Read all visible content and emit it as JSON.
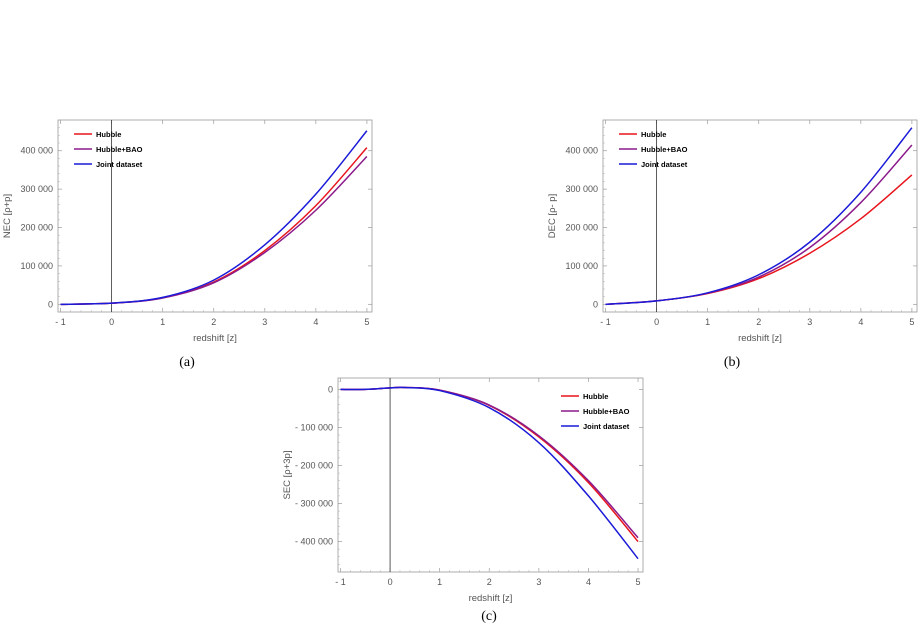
{
  "chart_data": [
    {
      "id": "a",
      "type": "line",
      "caption": "(a)",
      "xlabel": "redshift [z]",
      "ylabel": "NEC [ρ+p]",
      "xlim": [
        -1.05,
        5.1
      ],
      "ylim": [
        -20000,
        480000
      ],
      "xticks": [
        -1,
        0,
        1,
        2,
        3,
        4,
        5
      ],
      "xtick_labels": [
        "- 1",
        "0",
        "1",
        "2",
        "3",
        "4",
        "5"
      ],
      "yticks": [
        0,
        100000,
        200000,
        300000,
        400000
      ],
      "ytick_labels": [
        "0",
        "100 000",
        "200 000",
        "300 000",
        "400 000"
      ],
      "vline_x": 0,
      "legend_position": "top-left",
      "series": [
        {
          "name": "Hubble",
          "color": "#e8141c",
          "x": [
            -1,
            0,
            1,
            2,
            3,
            4,
            5
          ],
          "y": [
            0,
            3000,
            17000,
            58000,
            140000,
            257000,
            408000
          ]
        },
        {
          "name": "Hubble+BAO",
          "color": "#8b1a8b",
          "x": [
            -1,
            0,
            1,
            2,
            3,
            4,
            5
          ],
          "y": [
            0,
            3000,
            16500,
            56000,
            135000,
            245000,
            385000
          ]
        },
        {
          "name": "Joint dataset",
          "color": "#1a1ad8",
          "x": [
            -1,
            0,
            1,
            2,
            3,
            4,
            5
          ],
          "y": [
            0,
            3000,
            18000,
            63000,
            155000,
            287000,
            452000
          ]
        }
      ]
    },
    {
      "id": "b",
      "type": "line",
      "caption": "(b)",
      "xlabel": "redshift [z]",
      "ylabel": "DEC [ρ- p]",
      "xlim": [
        -1.05,
        5.1
      ],
      "ylim": [
        -20000,
        480000
      ],
      "xticks": [
        -1,
        0,
        1,
        2,
        3,
        4,
        5
      ],
      "xtick_labels": [
        "- 1",
        "0",
        "1",
        "2",
        "3",
        "4",
        "5"
      ],
      "yticks": [
        0,
        100000,
        200000,
        300000,
        400000
      ],
      "ytick_labels": [
        "0",
        "100 000",
        "200 000",
        "300 000",
        "400 000"
      ],
      "vline_x": 0,
      "legend_position": "top-left",
      "series": [
        {
          "name": "Hubble",
          "color": "#e8141c",
          "x": [
            -1,
            0,
            1,
            2,
            3,
            4,
            5
          ],
          "y": [
            0,
            9000,
            28000,
            67000,
            133000,
            223000,
            337000
          ]
        },
        {
          "name": "Hubble+BAO",
          "color": "#8b1a8b",
          "x": [
            -1,
            0,
            1,
            2,
            3,
            4,
            5
          ],
          "y": [
            0,
            9000,
            29000,
            71000,
            148000,
            265000,
            415000
          ]
        },
        {
          "name": "Joint dataset",
          "color": "#1a1ad8",
          "x": [
            -1,
            0,
            1,
            2,
            3,
            4,
            5
          ],
          "y": [
            0,
            9000,
            30000,
            77000,
            162000,
            292000,
            460000
          ]
        }
      ]
    },
    {
      "id": "c",
      "type": "line",
      "caption": "(c)",
      "xlabel": "redshift [z]",
      "ylabel": "SEC [ρ+3p]",
      "xlim": [
        -1.05,
        5.1
      ],
      "ylim": [
        -480000,
        30000
      ],
      "xticks": [
        -1,
        0,
        1,
        2,
        3,
        4,
        5
      ],
      "xtick_labels": [
        "- 1",
        "0",
        "1",
        "2",
        "3",
        "4",
        "5"
      ],
      "yticks": [
        0,
        -100000,
        -200000,
        -300000,
        -400000
      ],
      "ytick_labels": [
        "0",
        "- 100 000",
        "- 200 000",
        "- 300 000",
        "- 400 000"
      ],
      "vline_x": 0,
      "legend_position": "top-right",
      "series": [
        {
          "name": "Hubble",
          "color": "#e8141c",
          "x": [
            -1,
            -0.5,
            0,
            0.3,
            1,
            2,
            3,
            4,
            5
          ],
          "y": [
            0,
            0,
            4000,
            5000,
            -2000,
            -42000,
            -125000,
            -245000,
            -400000
          ]
        },
        {
          "name": "Hubble+BAO",
          "color": "#8b1a8b",
          "x": [
            -1,
            -0.5,
            0,
            0.3,
            1,
            2,
            3,
            4,
            5
          ],
          "y": [
            0,
            0,
            4000,
            5000,
            -2000,
            -41000,
            -122000,
            -240000,
            -390000
          ]
        },
        {
          "name": "Joint dataset",
          "color": "#1a1ad8",
          "x": [
            -1,
            -0.5,
            0,
            0.3,
            1,
            2,
            3,
            4,
            5
          ],
          "y": [
            0,
            0,
            4000,
            5000,
            -3000,
            -48000,
            -140000,
            -280000,
            -445000
          ]
        }
      ]
    }
  ]
}
